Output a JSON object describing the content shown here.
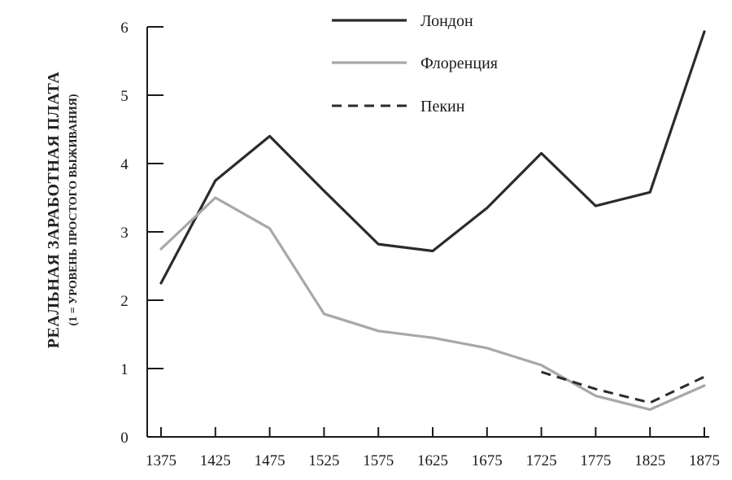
{
  "chart_data": {
    "type": "line",
    "ylabel": "РЕАЛЬНАЯ ЗАРАБОТНАЯ ПЛАТА",
    "ylabel_sub": "(1 = УРОВЕНЬ ПРОСТОГО ВЫЖИВАНИЯ)",
    "xlabel": "",
    "x_ticks": [
      "1375",
      "1425",
      "1475",
      "1525",
      "1575",
      "1625",
      "1675",
      "1725",
      "1775",
      "1825",
      "1875"
    ],
    "y_ticks": [
      "0",
      "1",
      "2",
      "3",
      "4",
      "5",
      "6"
    ],
    "xlim": [
      1375,
      1875
    ],
    "ylim": [
      0,
      6
    ],
    "grid": false,
    "legend_position": "top-center",
    "series": [
      {
        "name": "Лондон",
        "style": "solid",
        "color": "#2b2b2b",
        "x": [
          1375,
          1425,
          1475,
          1525,
          1575,
          1625,
          1675,
          1725,
          1775,
          1825,
          1875
        ],
        "y": [
          2.25,
          3.75,
          4.4,
          3.6,
          2.82,
          2.72,
          3.35,
          4.15,
          3.38,
          3.58,
          5.93
        ]
      },
      {
        "name": "Флоренция",
        "style": "solid",
        "color": "#a8a8a8",
        "x": [
          1375,
          1425,
          1475,
          1525,
          1575,
          1625,
          1675,
          1725,
          1775,
          1825,
          1875
        ],
        "y": [
          2.75,
          3.5,
          3.05,
          1.8,
          1.55,
          1.45,
          1.3,
          1.05,
          0.6,
          0.4,
          0.75
        ]
      },
      {
        "name": "Пекин",
        "style": "dashed",
        "color": "#2b2b2b",
        "x": [
          1725,
          1775,
          1825,
          1875
        ],
        "y": [
          0.95,
          0.7,
          0.5,
          0.88
        ]
      }
    ]
  }
}
